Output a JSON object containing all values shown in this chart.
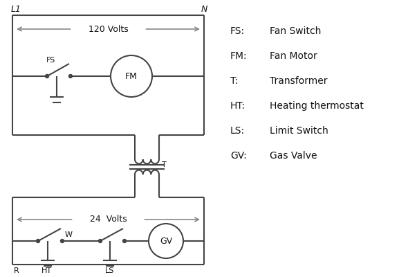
{
  "background_color": "#ffffff",
  "line_color": "#444444",
  "arrow_color": "#888888",
  "text_color": "#111111",
  "legend": {
    "FS": "Fan Switch",
    "FM": "Fan Motor",
    "T": "Transformer",
    "HT": "Heating thermostat",
    "LS": "Limit Switch",
    "GV": "Gas Valve"
  },
  "figsize": [
    5.9,
    4.0
  ],
  "dpi": 100
}
